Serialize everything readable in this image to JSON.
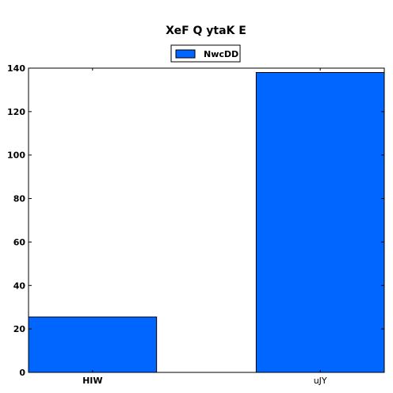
{
  "chart_data": {
    "type": "bar",
    "title": "XeF Q ytaK E",
    "categories": [
      "HIW",
      "uJY"
    ],
    "series": [
      {
        "name": "NwcDD",
        "values": [
          25.5,
          138
        ],
        "color": "#0066ff"
      }
    ],
    "xlabel": "",
    "ylabel": "",
    "ylim": [
      0,
      140
    ],
    "yticks": [
      0,
      20,
      40,
      60,
      80,
      100,
      120,
      140
    ],
    "grid": false,
    "legend_position": "top-center"
  }
}
